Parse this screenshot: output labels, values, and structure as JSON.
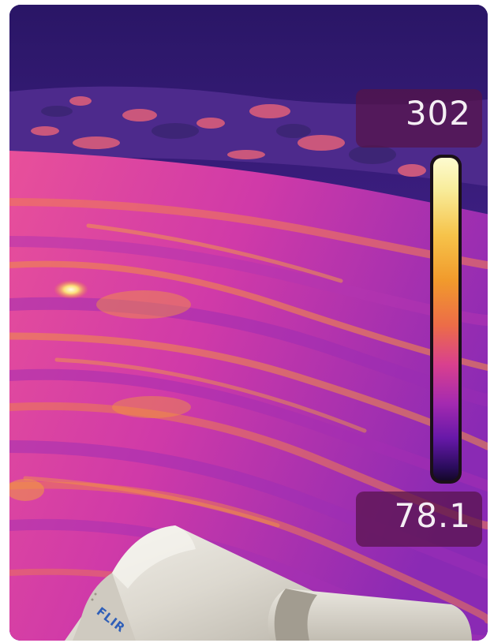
{
  "scale": {
    "max_value": "302",
    "min_value": "78.1",
    "palette": [
      "#fdfbd0",
      "#f6c34a",
      "#ec6c48",
      "#d9408e",
      "#a52ab0",
      "#6618a8",
      "#140828"
    ]
  },
  "camera": {
    "brand_text": "FLIR"
  }
}
